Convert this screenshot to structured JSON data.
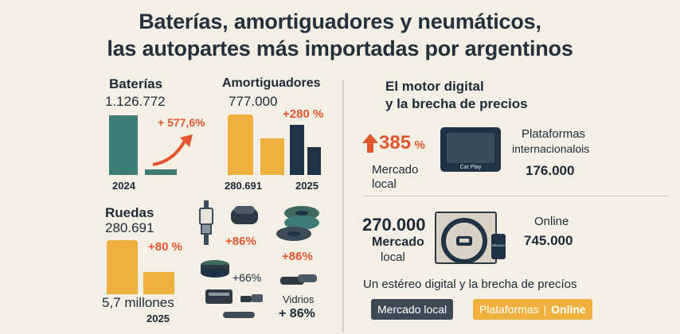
{
  "header": {
    "title_line1": "Baterías, amortiguadores y neumáticos,",
    "title_line2": "las autopartes más importadas por argentinos"
  },
  "baterias": {
    "label": "Baterías",
    "value": "1.126.772",
    "growth": "+ 577,6%",
    "year": "2024"
  },
  "amortiguadores": {
    "label": "Amortiguadores",
    "value": "777.000",
    "growth": "+280 %",
    "low_value": "280.691",
    "year": "2025"
  },
  "ruedas": {
    "label": "Ruedas",
    "value": "280.691",
    "growth": "+80 %",
    "base_label": "5,7 millones",
    "year": "2025"
  },
  "parts": {
    "bujias_growth": "+86%",
    "neumaticos_growth": "+86%",
    "filtros_growth": "+66%",
    "vidrios_label": "Vidrios",
    "vidrios_growth": "+ 86%"
  },
  "digital": {
    "title_line1": "El motor digital",
    "title_line2": "y la brecha de precios",
    "pct": "385",
    "pct_unit": "%",
    "local_label_line1": "Mercado",
    "local_label_line2": "local",
    "carplay_label": "Car Play",
    "platforms_line1": "Plataformas",
    "platforms_line2": "internacionalois",
    "platforms_value": "176.000"
  },
  "steering": {
    "local_value": "270.000",
    "local_label_line1": "Mercado",
    "local_label_line2": "local",
    "online_label": "Online",
    "online_value": "745.000",
    "phone_text": "BRANDS"
  },
  "footer": {
    "caption": "Un estéreo digital y la brecha de precíos",
    "pill_local": "Mercado local",
    "pill_platforms": "Plataformas",
    "pill_online": "Online"
  },
  "colors": {
    "teal": "#3e7d76",
    "gold": "#f0b03e",
    "navy": "#1f3346",
    "accent": "#e2572f",
    "background": "#f4efe5"
  }
}
